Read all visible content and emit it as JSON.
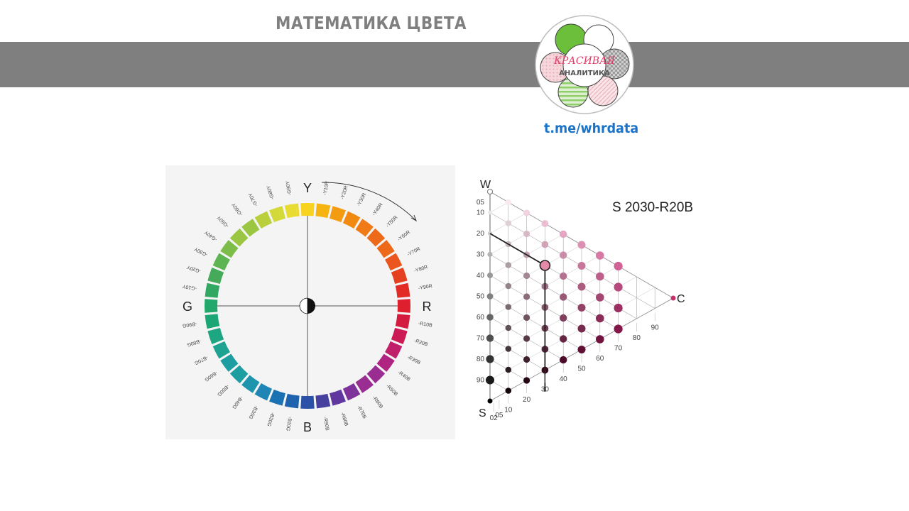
{
  "header": {
    "title": "МАТЕМАТИКА ЦВЕТА",
    "logo_top": "КРАСИВАЯ",
    "logo_bottom": "АНАЛИТИКА",
    "link": "t.me/whrdata"
  },
  "wheel": {
    "axes": {
      "top": "Y",
      "right": "R",
      "bottom": "B",
      "left": "G"
    },
    "labels": [
      "Y10R",
      "Y20R",
      "Y30R",
      "Y40R",
      "Y50R",
      "Y60R",
      "Y70R",
      "Y80R",
      "Y90R",
      "R10B",
      "R20B",
      "R30B",
      "R40B",
      "R50B",
      "R60B",
      "R70B",
      "R80B",
      "R90B",
      "B10G",
      "B20G",
      "B30G",
      "B40G",
      "B50G",
      "B60G",
      "B70G",
      "B80G",
      "B90G",
      "G10Y",
      "G20Y",
      "G30Y",
      "G40Y",
      "G50Y",
      "G60Y",
      "G70Y",
      "G80Y",
      "G90Y"
    ],
    "segment_colors": [
      "#f7d21e",
      "#f5b40f",
      "#f39c12",
      "#f28a12",
      "#ef7a16",
      "#ed6a1a",
      "#ea561d",
      "#e5401f",
      "#e22b25",
      "#dd1f2e",
      "#d51a3f",
      "#cc1b54",
      "#c01f6a",
      "#b02581",
      "#9a2d92",
      "#7e339b",
      "#60379f",
      "#46409f",
      "#2a51a6",
      "#1f62ad",
      "#1a72b3",
      "#1e85b5",
      "#1f95ad",
      "#1e9ea0",
      "#1ea291",
      "#1ea582",
      "#1da675",
      "#22a86a",
      "#30a862",
      "#45ab5a",
      "#5db452",
      "#7cbd4a",
      "#9ac642",
      "#b9d03c",
      "#d3d938",
      "#e8dc32"
    ]
  },
  "triangle": {
    "title": "S 2030-R20B",
    "vertex_w": "W",
    "vertex_s": "S",
    "vertex_c": "C",
    "left_scale": [
      "05",
      "10",
      "20",
      "30",
      "40",
      "50",
      "60",
      "70",
      "80",
      "90"
    ],
    "bottom_scale": [
      "02",
      "05",
      "10",
      "20",
      "30",
      "40",
      "50",
      "60",
      "70",
      "80",
      "90"
    ],
    "highlight": {
      "blackness": 20,
      "chromaticness": 30
    }
  }
}
